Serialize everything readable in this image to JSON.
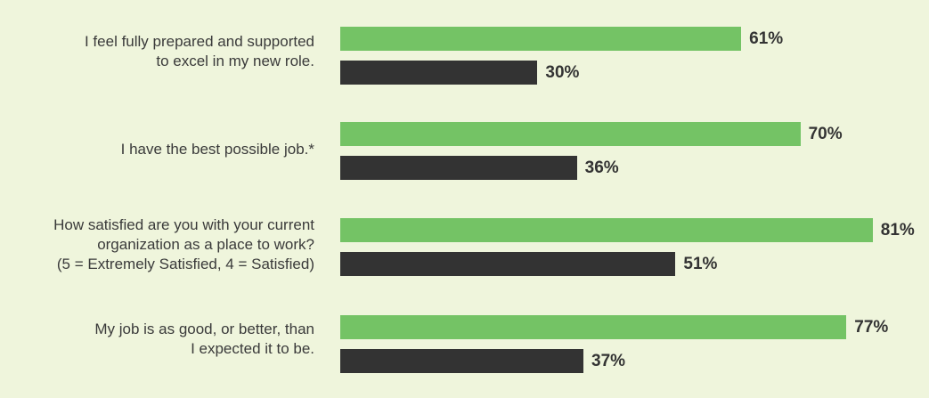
{
  "colors": {
    "background": "#eff5dc",
    "series_primary": "#74c365",
    "series_secondary": "#333333",
    "text": "#3a3a3a"
  },
  "chart_data": {
    "type": "bar",
    "orientation": "horizontal",
    "categories": [
      "I feel fully prepared and supported\nto excel in my new role.",
      "I have the best possible job.*",
      "How satisfied are you with your current\norganization as a place to work?\n(5 = Extremely Satisfied, 4 = Satisfied)",
      "My job is as good, or better, than\nI expected it to be."
    ],
    "series": [
      {
        "color": "#74c365",
        "values": [
          61,
          70,
          81,
          77
        ],
        "labels": [
          "61%",
          "70%",
          "81%",
          "77%"
        ]
      },
      {
        "color": "#333333",
        "values": [
          30,
          36,
          51,
          37
        ],
        "labels": [
          "30%",
          "36%",
          "51%",
          "37%"
        ]
      }
    ],
    "xlim": [
      0,
      100
    ],
    "unit": "%",
    "grid": false,
    "legend": "none"
  }
}
